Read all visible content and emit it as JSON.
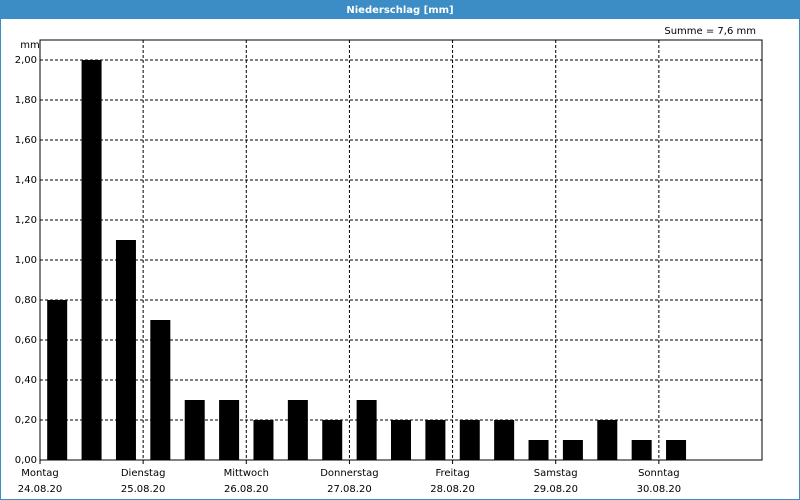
{
  "chart_data": {
    "type": "bar",
    "title": "Niederschlag [mm]",
    "y_label": "mm",
    "annotation": "Summe = 7,6 mm",
    "categories": [
      null,
      null,
      null,
      null,
      null,
      null,
      null,
      null,
      null,
      null,
      null,
      null,
      null,
      null,
      null,
      null,
      null,
      null,
      null,
      null,
      null
    ],
    "values": [
      0.8,
      2.0,
      1.1,
      0.7,
      0.3,
      0.3,
      0.2,
      0.3,
      0.2,
      0.3,
      0.2,
      0.2,
      0.2,
      0.2,
      0.1,
      0.1,
      0.2,
      0.1,
      0.1,
      null,
      null
    ],
    "color": "#000000",
    "ylim": [
      0,
      2.1
    ],
    "yticks": [
      {
        "value": 0,
        "label": "0,00"
      },
      {
        "value": 0.2,
        "label": "0,20"
      },
      {
        "value": 0.4,
        "label": "0,40"
      },
      {
        "value": 0.6,
        "label": "0,60"
      },
      {
        "value": 0.8,
        "label": "0,80"
      },
      {
        "value": 1.0,
        "label": "1,00"
      },
      {
        "value": 1.2,
        "label": "1,20"
      },
      {
        "value": 1.4,
        "label": "1,40"
      },
      {
        "value": 1.6,
        "label": "1,60"
      },
      {
        "value": 1.8,
        "label": "1,80"
      },
      {
        "value": 2.0,
        "label": "2,00"
      }
    ],
    "xticks": [
      {
        "value": 0,
        "label": "Montag",
        "date": "24.08.20"
      },
      {
        "value": 3,
        "label": "Dienstag",
        "date": "25.08.20"
      },
      {
        "value": 6,
        "label": "Mittwoch",
        "date": "26.08.20"
      },
      {
        "value": 9,
        "label": "Donnerstag",
        "date": "27.08.20"
      },
      {
        "value": 12,
        "label": "Freitag",
        "date": "28.08.20"
      },
      {
        "value": 15,
        "label": "Samstag",
        "date": "29.08.20"
      },
      {
        "value": 18,
        "label": "Sonntag",
        "date": "30.08.20"
      }
    ],
    "grid": true
  }
}
